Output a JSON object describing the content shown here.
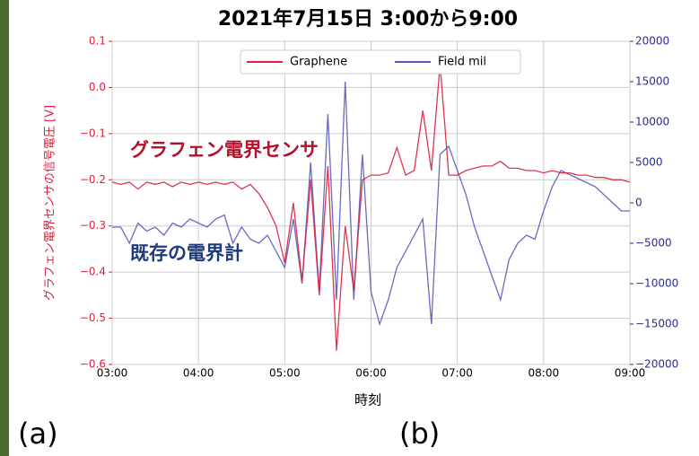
{
  "chart_data": {
    "type": "line",
    "title": "2021年7月15日 3:00から9:00",
    "x_label": "時刻",
    "y_label": "グラフェン電界センサの信号電圧 [V]",
    "annotations": [
      "グラフェン電界センサ",
      "既存の電界計"
    ],
    "panel_labels": [
      "(a)",
      "(b)"
    ],
    "grid": true,
    "legend": "upper center",
    "xlim": [
      3,
      9
    ],
    "xticks": [
      {
        "value": 3,
        "label": "03:00"
      },
      {
        "value": 4,
        "label": "04:00"
      },
      {
        "value": 5,
        "label": "05:00"
      },
      {
        "value": 6,
        "label": "06:00"
      },
      {
        "value": 7,
        "label": "07:00"
      },
      {
        "value": 8,
        "label": "08:00"
      },
      {
        "value": 9,
        "label": "09:00"
      }
    ],
    "ylim": [
      -0.6,
      0.1
    ],
    "yticks": [
      {
        "value": -0.6,
        "label": "−0.6"
      },
      {
        "value": -0.5,
        "label": "−0.5"
      },
      {
        "value": -0.4,
        "label": "−0.4"
      },
      {
        "value": -0.3,
        "label": "−0.3"
      },
      {
        "value": -0.2,
        "label": "−0.2"
      },
      {
        "value": -0.1,
        "label": "−0.1"
      },
      {
        "value": 0,
        "label": "0.0"
      },
      0.1
    ],
    "y2lim": [
      -20000,
      20000
    ],
    "y2ticks": [
      {
        "value": -20000,
        "label": "−20000"
      },
      {
        "value": -15000,
        "label": "−15000"
      },
      {
        "value": -10000,
        "label": "−10000"
      },
      {
        "value": -5000,
        "label": "−5000"
      },
      0,
      5000,
      10000,
      15000,
      20000
    ],
    "x": [
      3.0,
      3.1,
      3.2,
      3.3,
      3.4,
      3.5,
      3.6,
      3.7,
      3.8,
      3.9,
      4.0,
      4.1,
      4.2,
      4.3,
      4.4,
      4.5,
      4.6,
      4.7,
      4.8,
      4.9,
      5.0,
      5.1,
      5.2,
      5.3,
      5.4,
      5.5,
      5.6,
      5.7,
      5.8,
      5.9,
      6.0,
      6.1,
      6.2,
      6.3,
      6.4,
      6.5,
      6.6,
      6.7,
      6.8,
      6.9,
      7.0,
      7.1,
      7.2,
      7.3,
      7.4,
      7.5,
      7.6,
      7.7,
      7.8,
      7.9,
      8.0,
      8.1,
      8.2,
      8.3,
      8.4,
      8.5,
      8.6,
      8.7,
      8.8,
      8.9,
      9.0
    ],
    "series": [
      {
        "name": "Graphene",
        "color": "#dc1f3c",
        "values": [
          -0.205,
          -0.21,
          -0.205,
          -0.22,
          -0.205,
          -0.21,
          -0.205,
          -0.215,
          -0.205,
          -0.21,
          -0.205,
          -0.21,
          -0.205,
          -0.21,
          -0.205,
          -0.22,
          -0.21,
          -0.23,
          -0.26,
          -0.3,
          -0.38,
          -0.25,
          -0.42,
          -0.2,
          -0.45,
          -0.17,
          -0.57,
          -0.3,
          -0.44,
          -0.2,
          -0.19,
          -0.19,
          -0.185,
          -0.13,
          -0.19,
          -0.18,
          -0.05,
          -0.18,
          0.05,
          -0.19,
          -0.19,
          -0.18,
          -0.175,
          -0.17,
          -0.17,
          -0.16,
          -0.175,
          -0.175,
          -0.18,
          -0.18,
          -0.185,
          -0.18,
          -0.185,
          -0.185,
          -0.19,
          -0.19,
          -0.195,
          -0.195,
          -0.2,
          -0.2,
          -0.205
        ]
      },
      {
        "name": "Field mil",
        "color": "#5a5ab8",
        "axis": "y2",
        "values": [
          -3000,
          -3000,
          -5000,
          -2500,
          -3500,
          -3000,
          -4000,
          -2500,
          -3000,
          -2000,
          -2500,
          -3000,
          -2000,
          -1500,
          -5000,
          -3000,
          -4500,
          -5000,
          -4000,
          -6000,
          -8000,
          -2000,
          -10000,
          5000,
          -11000,
          11000,
          -12000,
          15000,
          -12000,
          6000,
          -11000,
          -15000,
          -12000,
          -8000,
          -6000,
          -4000,
          -2000,
          -15000,
          6000,
          7000,
          4000,
          1000,
          -3000,
          -6000,
          -9000,
          -12000,
          -7000,
          -5000,
          -4000,
          -4500,
          -1000,
          2000,
          4000,
          3500,
          3000,
          2500,
          2000,
          1000,
          0,
          -1000,
          -1000
        ]
      }
    ]
  }
}
